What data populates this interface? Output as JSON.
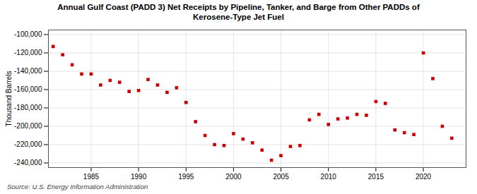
{
  "chart_data": {
    "type": "scatter",
    "title": "Annual Gulf Coast (PADD 3) Net Receipts by Pipeline, Tanker, and Barge from Other PADDs of\nKerosene-Type Jet Fuel",
    "ylabel": "Thousand Barrels",
    "source": "Source: U.S. Energy Information Administration",
    "color": "#cc0000",
    "marker": "square",
    "grid": true,
    "x": [
      1981,
      1982,
      1983,
      1984,
      1985,
      1986,
      1987,
      1988,
      1989,
      1990,
      1991,
      1992,
      1993,
      1994,
      1995,
      1996,
      1997,
      1998,
      1999,
      2000,
      2001,
      2002,
      2003,
      2004,
      2005,
      2006,
      2007,
      2008,
      2009,
      2010,
      2011,
      2012,
      2013,
      2014,
      2015,
      2016,
      2017,
      2018,
      2019,
      2020,
      2021,
      2022,
      2023
    ],
    "values": [
      -113000,
      -122000,
      -133000,
      -143000,
      -143000,
      -155000,
      -150000,
      -152000,
      -162000,
      -161000,
      -149000,
      -155000,
      -163000,
      -158000,
      -174000,
      -195000,
      -210000,
      -220000,
      -221000,
      -208000,
      -214000,
      -218000,
      -226000,
      -237000,
      -232000,
      -222000,
      -221000,
      -193000,
      -187000,
      -198000,
      -192000,
      -191000,
      -187000,
      -188000,
      -173000,
      -175000,
      -204000,
      -207000,
      -209000,
      -120000,
      -148000,
      -200000,
      -213000
    ],
    "xlim": [
      1980.5,
      2024.5
    ],
    "xticks": [
      1985,
      1990,
      1995,
      2000,
      2005,
      2010,
      2015,
      2020
    ],
    "ylim": [
      -245000,
      -95000
    ],
    "yticks": [
      {
        "value": -100000,
        "label": "-100,000"
      },
      {
        "value": -120000,
        "label": "-120,000"
      },
      {
        "value": -140000,
        "label": "-140,000"
      },
      {
        "value": -160000,
        "label": "-160,000"
      },
      {
        "value": -180000,
        "label": "-180,000"
      },
      {
        "value": -200000,
        "label": "-200,000"
      },
      {
        "value": -220000,
        "label": "-220,000"
      },
      {
        "value": -240000,
        "label": "-240,000"
      }
    ]
  }
}
